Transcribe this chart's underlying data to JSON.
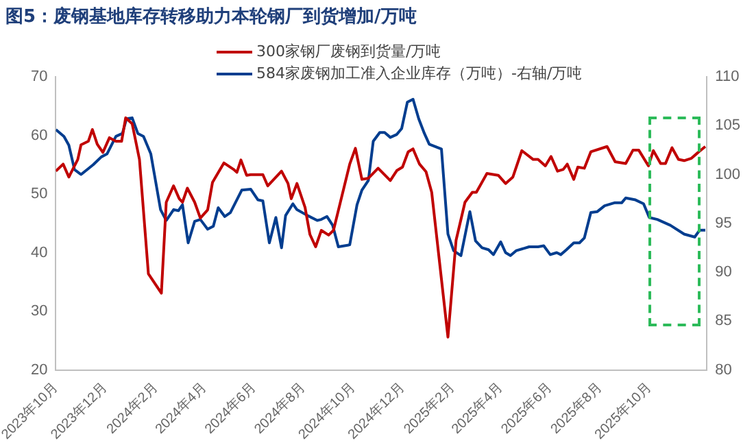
{
  "chart_data": {
    "type": "line",
    "title": "图5：废钢基地库存转移助力本轮钢厂到货增加/万吨",
    "legend": "top",
    "grid": false,
    "marker": "none",
    "line_style": "solid",
    "xlim": [
      "2023-10-01",
      "2025-12-11"
    ],
    "xticks": [
      {
        "value": "2023-10",
        "label": "2023年10月"
      },
      {
        "value": "2023-12",
        "label": "2023年12月"
      },
      {
        "value": "2024-02",
        "label": "2024年2月"
      },
      {
        "value": "2024-04",
        "label": "2024年4月"
      },
      {
        "value": "2024-06",
        "label": "2024年6月"
      },
      {
        "value": "2024-08",
        "label": "2024年8月"
      },
      {
        "value": "2024-10",
        "label": "2024年10月"
      },
      {
        "value": "2024-12",
        "label": "2024年12月"
      },
      {
        "value": "2025-02",
        "label": "2025年2月"
      },
      {
        "value": "2025-04",
        "label": "2025年4月"
      },
      {
        "value": "2025-06",
        "label": "2025年6月"
      },
      {
        "value": "2025-08",
        "label": "2025年8月"
      },
      {
        "value": "2025-10",
        "label": "2025年10月"
      }
    ],
    "ylim": [
      20,
      70
    ],
    "yticks": [
      20,
      30,
      40,
      50,
      60,
      70
    ],
    "y2lim": [
      80,
      110
    ],
    "y2ticks": [
      80,
      85,
      90,
      95,
      100,
      105,
      110
    ],
    "series": [
      {
        "name": "300家钢厂废钢到货量/万吨",
        "color": "#c00000",
        "x": [
          "2023-10-01",
          "2023-10-10",
          "2023-10-17",
          "2023-10-28",
          "2023-11-01",
          "2023-11-10",
          "2023-11-15",
          "2023-11-21",
          "2023-11-28",
          "2023-12-06",
          "2023-12-14",
          "2023-12-21",
          "2023-12-26",
          "2024-01-03",
          "2024-01-12",
          "2024-01-23",
          "2024-02-08",
          "2024-02-14",
          "2024-02-23",
          "2024-03-01",
          "2024-03-05",
          "2024-03-11",
          "2024-03-20",
          "2024-03-27",
          "2024-04-05",
          "2024-04-11",
          "2024-04-25",
          "2024-05-07",
          "2024-05-11",
          "2024-05-16",
          "2024-05-23",
          "2024-05-28",
          "2024-06-12",
          "2024-06-18",
          "2024-07-05",
          "2024-07-13",
          "2024-07-17",
          "2024-07-24",
          "2024-08-03",
          "2024-08-09",
          "2024-08-16",
          "2024-08-23",
          "2024-09-01",
          "2024-09-07",
          "2024-09-27",
          "2024-10-04",
          "2024-10-12",
          "2024-10-20",
          "2024-11-01",
          "2024-11-16",
          "2024-11-24",
          "2024-12-01",
          "2024-12-08",
          "2024-12-14",
          "2024-12-22",
          "2024-12-30",
          "2025-01-06",
          "2025-01-26",
          "2025-02-05",
          "2025-02-16",
          "2025-02-25",
          "2025-03-02",
          "2025-03-15",
          "2025-03-29",
          "2025-04-07",
          "2025-04-16",
          "2025-04-27",
          "2025-05-11",
          "2025-05-17",
          "2025-05-26",
          "2025-06-02",
          "2025-06-10",
          "2025-06-17",
          "2025-06-22",
          "2025-06-30",
          "2025-07-05",
          "2025-07-13",
          "2025-07-21",
          "2025-08-10",
          "2025-08-20",
          "2025-09-02",
          "2025-09-11",
          "2025-09-18",
          "2025-09-30",
          "2025-10-06",
          "2025-10-15",
          "2025-10-21",
          "2025-10-29",
          "2025-11-06",
          "2025-11-13",
          "2025-11-22",
          "2025-12-01",
          "2025-12-09"
        ],
        "values": [
          53.9,
          55.1,
          52.9,
          55.9,
          58.4,
          59.0,
          61.0,
          58.5,
          57.1,
          59.6,
          59.0,
          59.0,
          63.0,
          62.0,
          55.9,
          36.4,
          33.1,
          48.6,
          51.4,
          49.2,
          48.6,
          51.0,
          48.6,
          45.9,
          47.3,
          52.0,
          55.3,
          54.2,
          53.7,
          55.8,
          53.2,
          53.3,
          53.3,
          51.4,
          53.9,
          51.8,
          49.2,
          51.8,
          47.7,
          43.1,
          41.0,
          43.8,
          43.0,
          43.8,
          55.1,
          57.8,
          52.5,
          52.7,
          54.4,
          52.3,
          54.0,
          54.6,
          57.2,
          57.7,
          55.1,
          53.8,
          50.3,
          25.6,
          42.1,
          48.6,
          50.3,
          50.3,
          53.5,
          53.2,
          51.8,
          52.9,
          57.4,
          55.9,
          55.9,
          54.8,
          56.4,
          53.9,
          54.2,
          55.1,
          52.5,
          54.6,
          54.4,
          57.2,
          58.1,
          55.5,
          55.2,
          57.5,
          57.5,
          54.8,
          57.4,
          55.2,
          55.2,
          57.9,
          55.9,
          55.7,
          56.1,
          57.2,
          58.1
        ]
      },
      {
        "name": "584家废钢加工准入企业库存（万吨）-右轴/万吨",
        "color": "#003d8f",
        "axis": "y2",
        "x": [
          "2023-10-01",
          "2023-10-11",
          "2023-10-17",
          "2023-10-24",
          "2023-11-01",
          "2023-11-10",
          "2023-11-16",
          "2023-11-26",
          "2023-12-03",
          "2023-12-14",
          "2023-12-22",
          "2023-12-27",
          "2024-01-03",
          "2024-01-10",
          "2024-01-17",
          "2024-01-26",
          "2024-02-07",
          "2024-02-14",
          "2024-02-23",
          "2024-02-29",
          "2024-03-05",
          "2024-03-12",
          "2024-03-20",
          "2024-03-27",
          "2024-04-05",
          "2024-04-12",
          "2024-04-18",
          "2024-04-26",
          "2024-05-03",
          "2024-05-17",
          "2024-05-28",
          "2024-06-06",
          "2024-06-12",
          "2024-06-20",
          "2024-06-28",
          "2024-07-05",
          "2024-07-10",
          "2024-07-19",
          "2024-07-24",
          "2024-08-06",
          "2024-08-18",
          "2024-08-23",
          "2024-08-30",
          "2024-09-06",
          "2024-09-13",
          "2024-09-27",
          "2024-10-06",
          "2024-10-12",
          "2024-10-20",
          "2024-10-26",
          "2024-11-03",
          "2024-11-09",
          "2024-11-16",
          "2024-11-24",
          "2024-11-30",
          "2024-12-07",
          "2024-12-14",
          "2024-12-21",
          "2024-12-28",
          "2025-01-03",
          "2025-01-18",
          "2025-01-26",
          "2025-02-02",
          "2025-02-11",
          "2025-02-22",
          "2025-03-01",
          "2025-03-09",
          "2025-03-17",
          "2025-03-23",
          "2025-04-01",
          "2025-04-07",
          "2025-04-13",
          "2025-04-20",
          "2025-05-06",
          "2025-05-17",
          "2025-05-24",
          "2025-06-01",
          "2025-06-09",
          "2025-06-14",
          "2025-06-21",
          "2025-06-30",
          "2025-07-07",
          "2025-07-13",
          "2025-07-21",
          "2025-07-29",
          "2025-08-07",
          "2025-08-19",
          "2025-08-28",
          "2025-09-02",
          "2025-09-14",
          "2025-09-24",
          "2025-10-01",
          "2025-10-11",
          "2025-10-27",
          "2025-11-13",
          "2025-11-26",
          "2025-12-02",
          "2025-12-09"
        ],
        "values": [
          104.6,
          103.9,
          103.0,
          100.5,
          100.0,
          100.6,
          101.0,
          101.8,
          102.1,
          103.9,
          104.2,
          105.7,
          105.8,
          104.2,
          103.9,
          102.1,
          96.4,
          95.3,
          96.4,
          96.3,
          96.9,
          93.0,
          95.2,
          95.4,
          94.4,
          94.7,
          96.6,
          95.7,
          96.1,
          98.4,
          98.5,
          97.4,
          97.3,
          93.0,
          95.6,
          92.5,
          95.8,
          97.0,
          96.4,
          95.8,
          95.3,
          95.4,
          95.7,
          94.8,
          92.6,
          92.8,
          96.9,
          98.4,
          99.4,
          103.4,
          104.3,
          104.3,
          103.8,
          104.1,
          104.7,
          107.4,
          107.7,
          105.7,
          104.2,
          103.1,
          102.6,
          93.9,
          92.2,
          91.7,
          96.2,
          93.2,
          92.5,
          92.3,
          91.8,
          93.1,
          92.0,
          91.7,
          92.2,
          92.6,
          92.6,
          92.7,
          91.8,
          92.0,
          91.8,
          92.3,
          93.0,
          93.0,
          93.5,
          96.1,
          96.2,
          96.8,
          97.1,
          97.1,
          97.6,
          97.4,
          97.0,
          95.6,
          95.4,
          94.8,
          93.9,
          93.6,
          94.3,
          94.3
        ]
      }
    ]
  }
}
